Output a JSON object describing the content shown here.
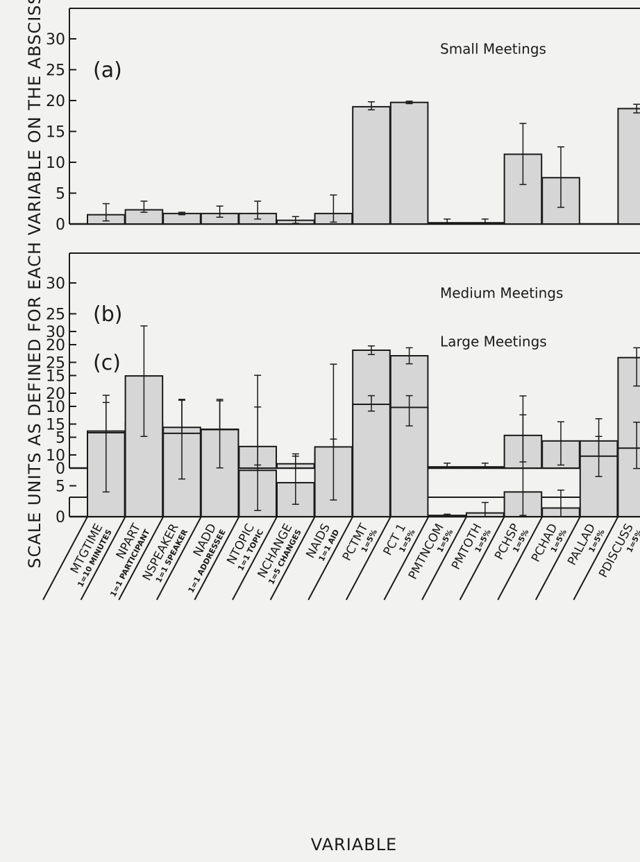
{
  "figure": {
    "ylabel": "SCALE UNITS AS DEFINED FOR EACH VARIABLE ON THE ABSCISSA",
    "xlabel": "VARIABLE",
    "yticks": [
      "0",
      "5",
      "10",
      "15",
      "20",
      "25",
      "30"
    ],
    "variables": [
      {
        "name": "MTGTIME",
        "unit": "1=10 MINUTES"
      },
      {
        "name": "NPART",
        "unit": "1=1 PARTICIPANT"
      },
      {
        "name": "NSPEAKER",
        "unit": "1=1 SPEAKER"
      },
      {
        "name": "NADD",
        "unit": "1=1 ADDRESSEE"
      },
      {
        "name": "NTOPIC",
        "unit": "1=1 TOPIC"
      },
      {
        "name": "NCHANGE",
        "unit": "1=5 CHANGES"
      },
      {
        "name": "NAIDS",
        "unit": "1=1 AID"
      },
      {
        "name": "PCTMT",
        "unit": "1=5%"
      },
      {
        "name": "PCT 1",
        "unit": "1=5%"
      },
      {
        "name": "PMTNCOM",
        "unit": "1=5%"
      },
      {
        "name": "PMTOTH",
        "unit": "1=5%"
      },
      {
        "name": "PCHSP",
        "unit": "1=5%"
      },
      {
        "name": "PCHAD",
        "unit": "1=5%"
      },
      {
        "name": "PALLAD",
        "unit": "1=5%"
      },
      {
        "name": "PDISCUSS",
        "unit": "1=5%"
      }
    ],
    "colors": {
      "background": "#f2f2f0",
      "bar_fill": "#d6d6d6",
      "ink": "#1a1a1a"
    }
  },
  "chart_data": [
    {
      "type": "bar",
      "panel": "(a)",
      "title": "Small Meetings",
      "ylim": [
        0,
        35
      ],
      "values": [
        1.5,
        2.3,
        1.7,
        1.7,
        1.7,
        0.6,
        1.7,
        19.0,
        19.7,
        0.2,
        0.2,
        11.3,
        7.5,
        null,
        18.7
      ],
      "error_upper": [
        3.3,
        3.7,
        1.9,
        2.9,
        3.7,
        1.2,
        4.7,
        19.8,
        19.9,
        0.8,
        0.8,
        16.3,
        12.5,
        null,
        19.4
      ],
      "error_lower": [
        0.5,
        1.9,
        1.5,
        1.1,
        0.8,
        0.1,
        0.3,
        18.5,
        19.5,
        0.0,
        0.0,
        6.4,
        2.7,
        null,
        18.0
      ]
    },
    {
      "type": "bar",
      "panel": "(b)",
      "title": "Medium Meetings",
      "ylim": [
        0,
        35
      ],
      "values": [
        6.0,
        7.4,
        6.6,
        6.3,
        3.5,
        0.7,
        2.4,
        19.1,
        18.2,
        0.2,
        0.2,
        5.3,
        4.4,
        4.4,
        17.9
      ],
      "error_upper": [
        11.8,
        11.9,
        11.0,
        10.9,
        9.9,
        2.3,
        4.7,
        19.8,
        19.5,
        0.8,
        0.8,
        11.7,
        7.5,
        8.0,
        19.5
      ],
      "error_lower": [
        0.7,
        3.1,
        3.1,
        3.1,
        0.5,
        0.0,
        0.3,
        18.4,
        16.9,
        0.0,
        0.0,
        1.0,
        0.5,
        0.5,
        13.3
      ]
    },
    {
      "type": "bar",
      "panel": "(c)",
      "title": "Large Meetings",
      "ylim": [
        0,
        35
      ],
      "values": [
        13.6,
        22.8,
        13.5,
        14.1,
        7.5,
        5.5,
        11.3,
        18.2,
        17.7,
        0.2,
        0.6,
        4.0,
        1.4,
        9.8,
        11.1
      ],
      "error_upper": [
        18.5,
        30.9,
        19.0,
        19.0,
        22.9,
        9.8,
        24.7,
        19.6,
        19.6,
        0.4,
        2.3,
        16.5,
        4.3,
        13.0,
        15.3
      ],
      "error_lower": [
        4.0,
        13.0,
        6.1,
        7.9,
        1.0,
        2.0,
        2.7,
        17.1,
        14.7,
        0.0,
        0.0,
        0.2,
        0.0,
        6.5,
        7.8
      ]
    }
  ]
}
